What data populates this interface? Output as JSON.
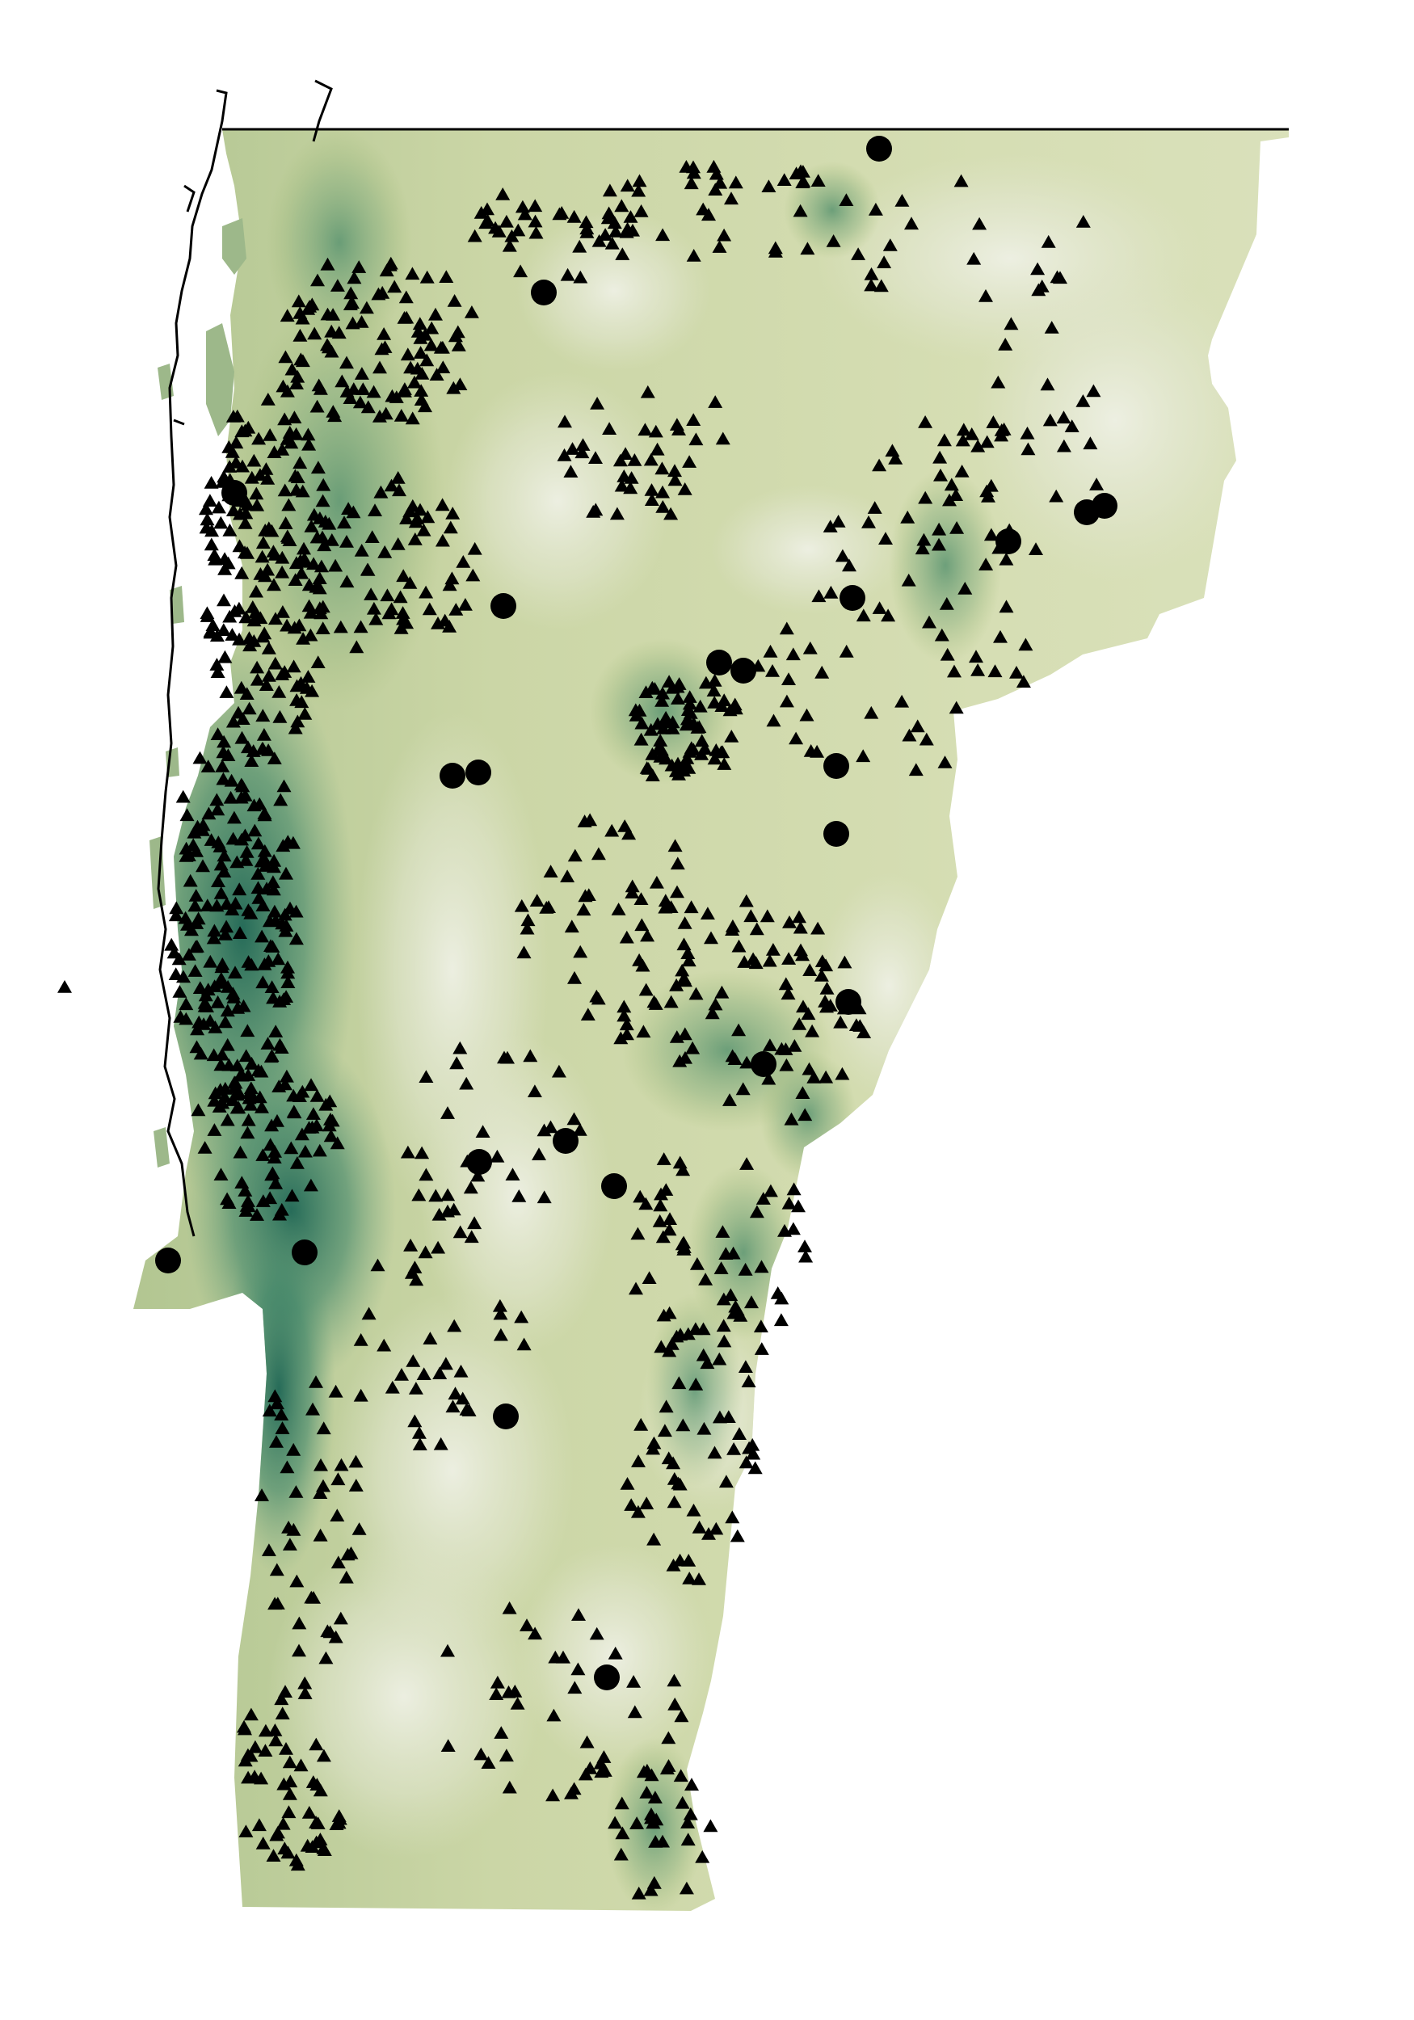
{
  "map": {
    "region": "Vermont",
    "colors": {
      "background": "#ffffff",
      "border": "#000000",
      "land_light": "#e6e9d6",
      "land_mid": "#c7d49b",
      "land_green": "#9fb872",
      "land_dark": "#2f7a61",
      "land_darkest": "#1e6655",
      "marker": "#000000"
    },
    "marker_types": [
      "triangle",
      "circle"
    ],
    "icons": {
      "triangle": "triangle-marker-icon",
      "circle": "circle-marker-icon"
    }
  }
}
